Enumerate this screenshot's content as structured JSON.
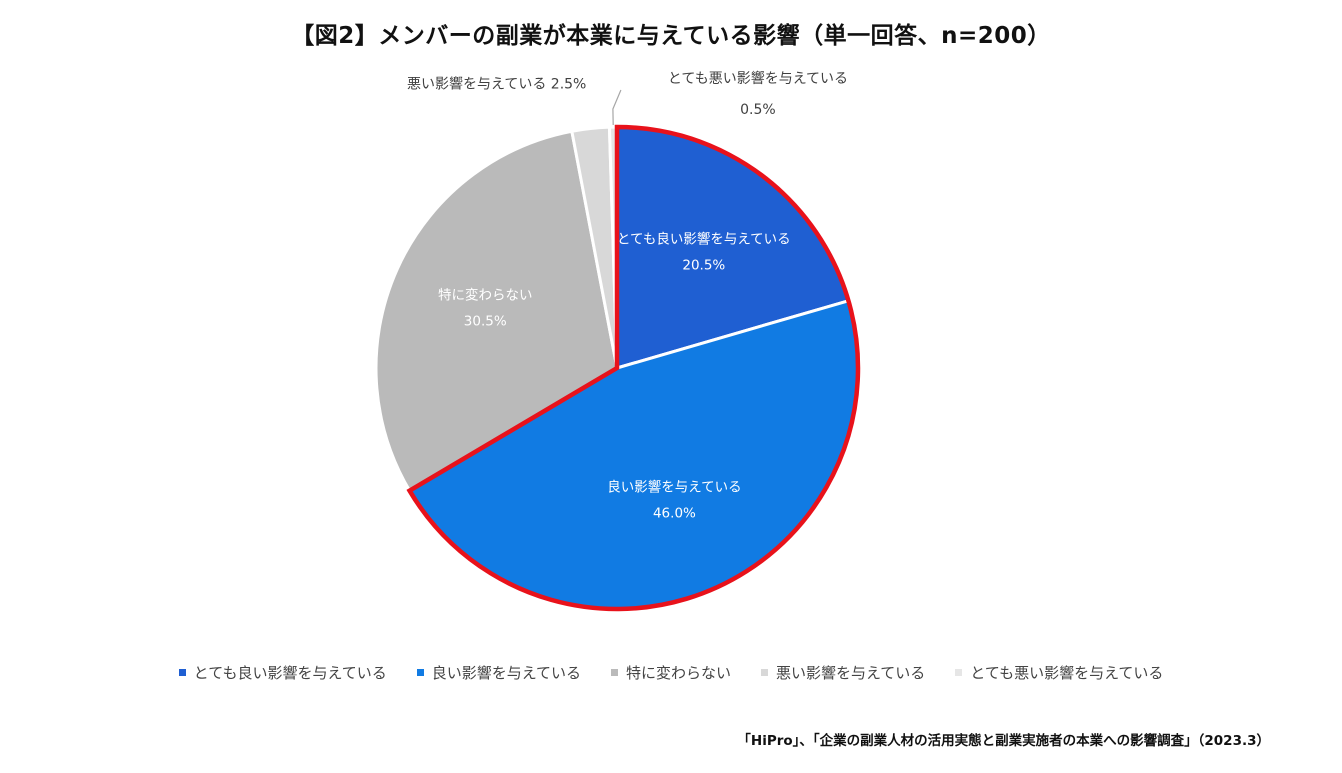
{
  "title": "【図2】メンバーの副業が本業に与えている影響（単一回答、n=200）",
  "source": "「HiPro」、「企業の副業人材の活用実態と副業実施者の本業への影響調査」（2023.3）",
  "chart_data": {
    "type": "pie",
    "title": "【図2】メンバーの副業が本業に与えている影響（単一回答、n=200）",
    "start_angle_deg": 0,
    "direction": "clockwise",
    "unit": "%",
    "highlight_color": "#e8121b",
    "highlighted_slices": [
      "とても良い影響を与えている",
      "良い影響を与えている"
    ],
    "legend_position": "bottom",
    "slices": [
      {
        "label": "とても良い影響を与えている",
        "value": 20.5,
        "value_label": "20.5%",
        "color": "#1f5fd2",
        "label_color": "#ffffff"
      },
      {
        "label": "良い影響を与えている",
        "value": 46.0,
        "value_label": "46.0%",
        "color": "#117be3",
        "label_color": "#ffffff"
      },
      {
        "label": "特に変わらない",
        "value": 30.5,
        "value_label": "30.5%",
        "color": "#bababa",
        "label_color": "#ffffff"
      },
      {
        "label": "悪い影響を与えている",
        "value": 2.5,
        "value_label": "2.5%",
        "color": "#d8d8d8",
        "label_color": "#404040"
      },
      {
        "label": "とても悪い影響を与えている",
        "value": 0.5,
        "value_label": "0.5%",
        "color": "#e6e6e6",
        "label_color": "#404040"
      }
    ]
  }
}
